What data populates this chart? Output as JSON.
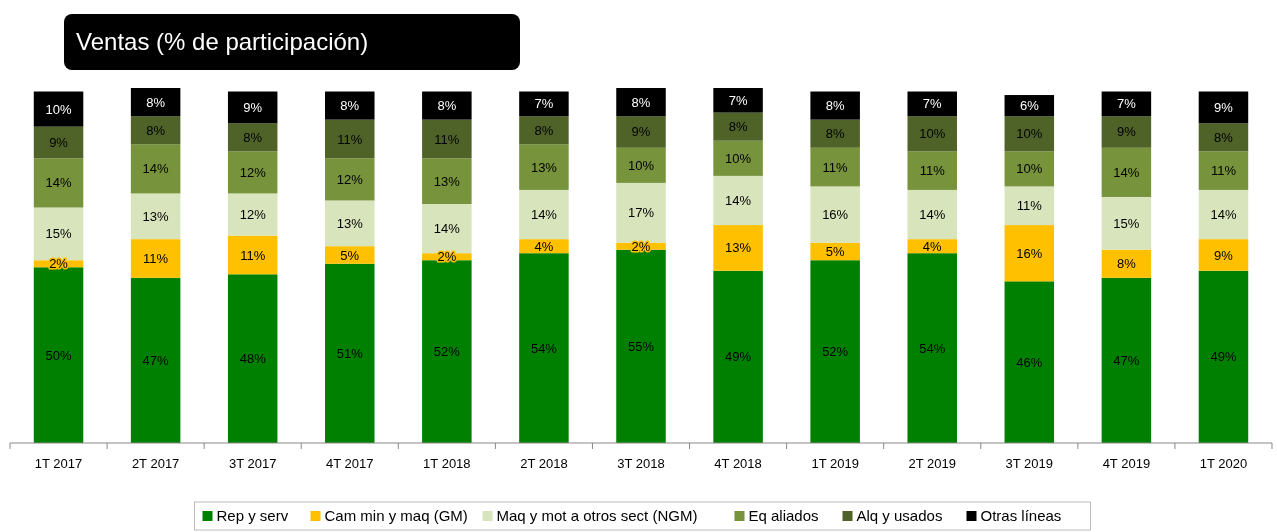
{
  "chart_data": {
    "type": "bar",
    "stacked": true,
    "title": "Ventas (% de participación)",
    "legend": "bottom",
    "categories": [
      "1T 2017",
      "2T 2017",
      "3T 2017",
      "4T 2017",
      "1T 2018",
      "2T 2018",
      "3T 2018",
      "4T 2018",
      "1T 2019",
      "2T 2019",
      "3T 2019",
      "4T 2019",
      "1T 2020"
    ],
    "series": [
      {
        "name": "Rep y serv",
        "color": "#008000",
        "values": [
          50,
          47,
          48,
          51,
          52,
          54,
          55,
          49,
          52,
          54,
          46,
          47,
          49
        ],
        "value_labels": [
          "50%",
          "47%",
          "48%",
          "51%",
          "52%",
          "54%",
          "55%",
          "49%",
          "52%",
          "54%",
          "46%",
          "47%",
          "49%"
        ]
      },
      {
        "name": "Cam min y maq (GM)",
        "color": "#ffc000",
        "values": [
          2,
          11,
          11,
          5,
          2,
          4,
          2,
          13,
          5,
          4,
          16,
          8,
          9
        ],
        "value_labels": [
          "2%",
          "11%",
          "11%",
          "5%",
          "2%",
          "4%",
          "2%",
          "13%",
          "5%",
          "4%",
          "16%",
          "8%",
          "9%"
        ]
      },
      {
        "name": "Maq y mot a otros sect (NGM)",
        "color": "#d8e4bc",
        "values": [
          15,
          13,
          12,
          13,
          14,
          14,
          17,
          14,
          16,
          14,
          11,
          15,
          14
        ],
        "value_labels": [
          "15%",
          "13%",
          "12%",
          "13%",
          "14%",
          "14%",
          "17%",
          "14%",
          "16%",
          "14%",
          "11%",
          "15%",
          "14%"
        ]
      },
      {
        "name": "Eq aliados",
        "color": "#77933c",
        "values": [
          14,
          14,
          12,
          12,
          13,
          13,
          10,
          10,
          11,
          11,
          10,
          14,
          11
        ],
        "value_labels": [
          "14%",
          "14%",
          "12%",
          "12%",
          "13%",
          "13%",
          "10%",
          "10%",
          "11%",
          "11%",
          "10%",
          "14%",
          "11%"
        ]
      },
      {
        "name": "Alq y usados",
        "color": "#4f6228",
        "values": [
          9,
          8,
          8,
          11,
          11,
          8,
          9,
          8,
          8,
          10,
          10,
          9,
          8
        ],
        "value_labels": [
          "9%",
          "8%",
          "8%",
          "11%",
          "11%",
          "8%",
          "9%",
          "8%",
          "8%",
          "10%",
          "10%",
          "9%",
          "8%"
        ]
      },
      {
        "name": "Otras líneas",
        "color": "#000000",
        "values": [
          10,
          8,
          9,
          8,
          8,
          7,
          8,
          7,
          8,
          7,
          6,
          7,
          9
        ],
        "value_labels": [
          "10%",
          "8%",
          "9%",
          "8%",
          "8%",
          "7%",
          "8%",
          "7%",
          "8%",
          "7%",
          "6%",
          "7%",
          "9%"
        ]
      }
    ]
  }
}
